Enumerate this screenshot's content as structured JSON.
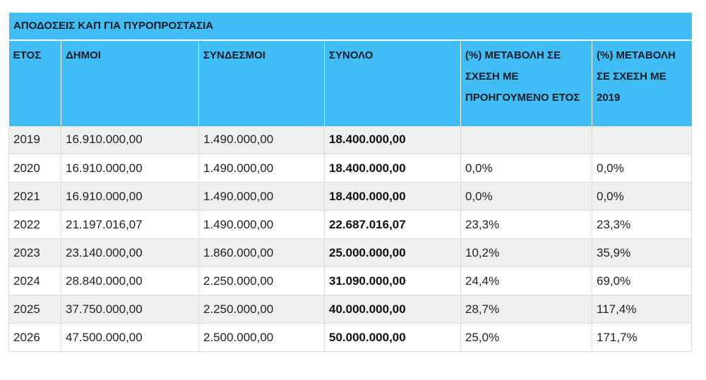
{
  "table": {
    "title": "ΑΠΟΔΟΣΕΙΣ ΚΑΠ ΓΙΑ ΠΥΡΟΠΡΟΣΤΑΣΙΑ",
    "headers": {
      "year": "ΕΤΟΣ",
      "municipalities": "ΔΗΜΟΙ",
      "associations": "ΣΥΝΔΕΣΜΟΙ",
      "total": "ΣΥΝΟΛΟ",
      "change_prev": "(%) ΜΕΤΑΒΟΛΗ ΣΕ ΣΧΕΣΗ ΜΕ ΠΡΟΗΓΟΥΜΕΝΟ ΕΤΟΣ",
      "change_2019": "(%) ΜΕΤΑΒΟΛΗ ΣΕ ΣΧΕΣΗ ΜΕ 2019"
    },
    "rows": [
      {
        "year": "2019",
        "municipalities": "16.910.000,00",
        "associations": "1.490.000,00",
        "total": "18.400.000,00",
        "change_prev": "",
        "change_2019": ""
      },
      {
        "year": "2020",
        "municipalities": "16.910.000,00",
        "associations": "1.490.000,00",
        "total": "18.400.000,00",
        "change_prev": "0,0%",
        "change_2019": "0,0%"
      },
      {
        "year": "2021",
        "municipalities": "16.910.000,00",
        "associations": "1.490.000,00",
        "total": "18.400.000,00",
        "change_prev": "0,0%",
        "change_2019": "0,0%"
      },
      {
        "year": "2022",
        "municipalities": "21.197.016,07",
        "associations": "1.490.000,00",
        "total": "22.687.016,07",
        "change_prev": "23,3%",
        "change_2019": "23,3%"
      },
      {
        "year": "2023",
        "municipalities": "23.140.000,00",
        "associations": "1.860.000,00",
        "total": "25.000.000,00",
        "change_prev": "10,2%",
        "change_2019": "35,9%"
      },
      {
        "year": "2024",
        "municipalities": "28.840.000,00",
        "associations": "2.250.000,00",
        "total": "31.090.000,00",
        "change_prev": "24,4%",
        "change_2019": "69,0%"
      },
      {
        "year": "2025",
        "municipalities": "37.750.000,00",
        "associations": "2.250.000,00",
        "total": "40.000.000,00",
        "change_prev": "28,7%",
        "change_2019": "117,4%"
      },
      {
        "year": "2026",
        "municipalities": "47.500.000,00",
        "associations": "2.500.000,00",
        "total": "50.000.000,00",
        "change_prev": "25,0%",
        "change_2019": "171,7%"
      }
    ],
    "colors": {
      "header_bg": "#41bdf5",
      "stripe_bg": "#efefef",
      "row_bg": "#ffffff"
    }
  }
}
